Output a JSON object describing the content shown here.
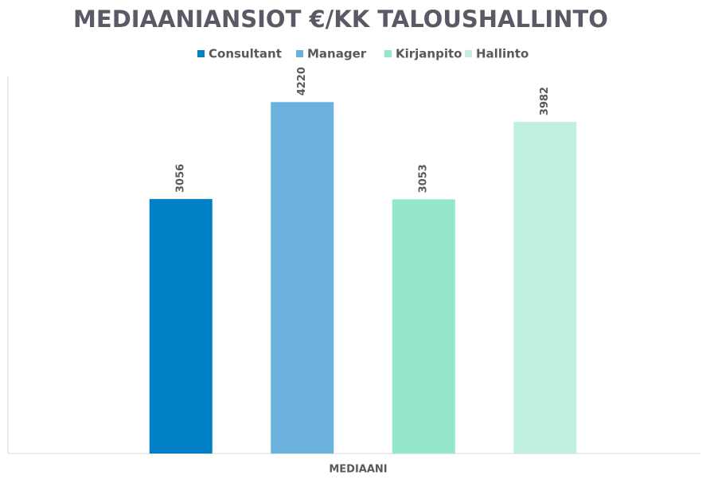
{
  "chart_data": {
    "type": "bar",
    "title": "MEDIAANIANSIOT €/KK TALOUSHALLINTO",
    "categories": [
      "MEDIAANI"
    ],
    "series": [
      {
        "name": "Consultant",
        "color": "#0280c6",
        "values": [
          3056
        ]
      },
      {
        "name": "Manager",
        "color": "#6ab2dd",
        "values": [
          4220
        ]
      },
      {
        "name": "Kirjanpito",
        "color": "#94e6cc",
        "values": [
          3053
        ]
      },
      {
        "name": "Hallinto",
        "color": "#c2f0df",
        "values": [
          3982
        ]
      }
    ],
    "ylim": [
      0,
      4500
    ],
    "legend": "top"
  }
}
